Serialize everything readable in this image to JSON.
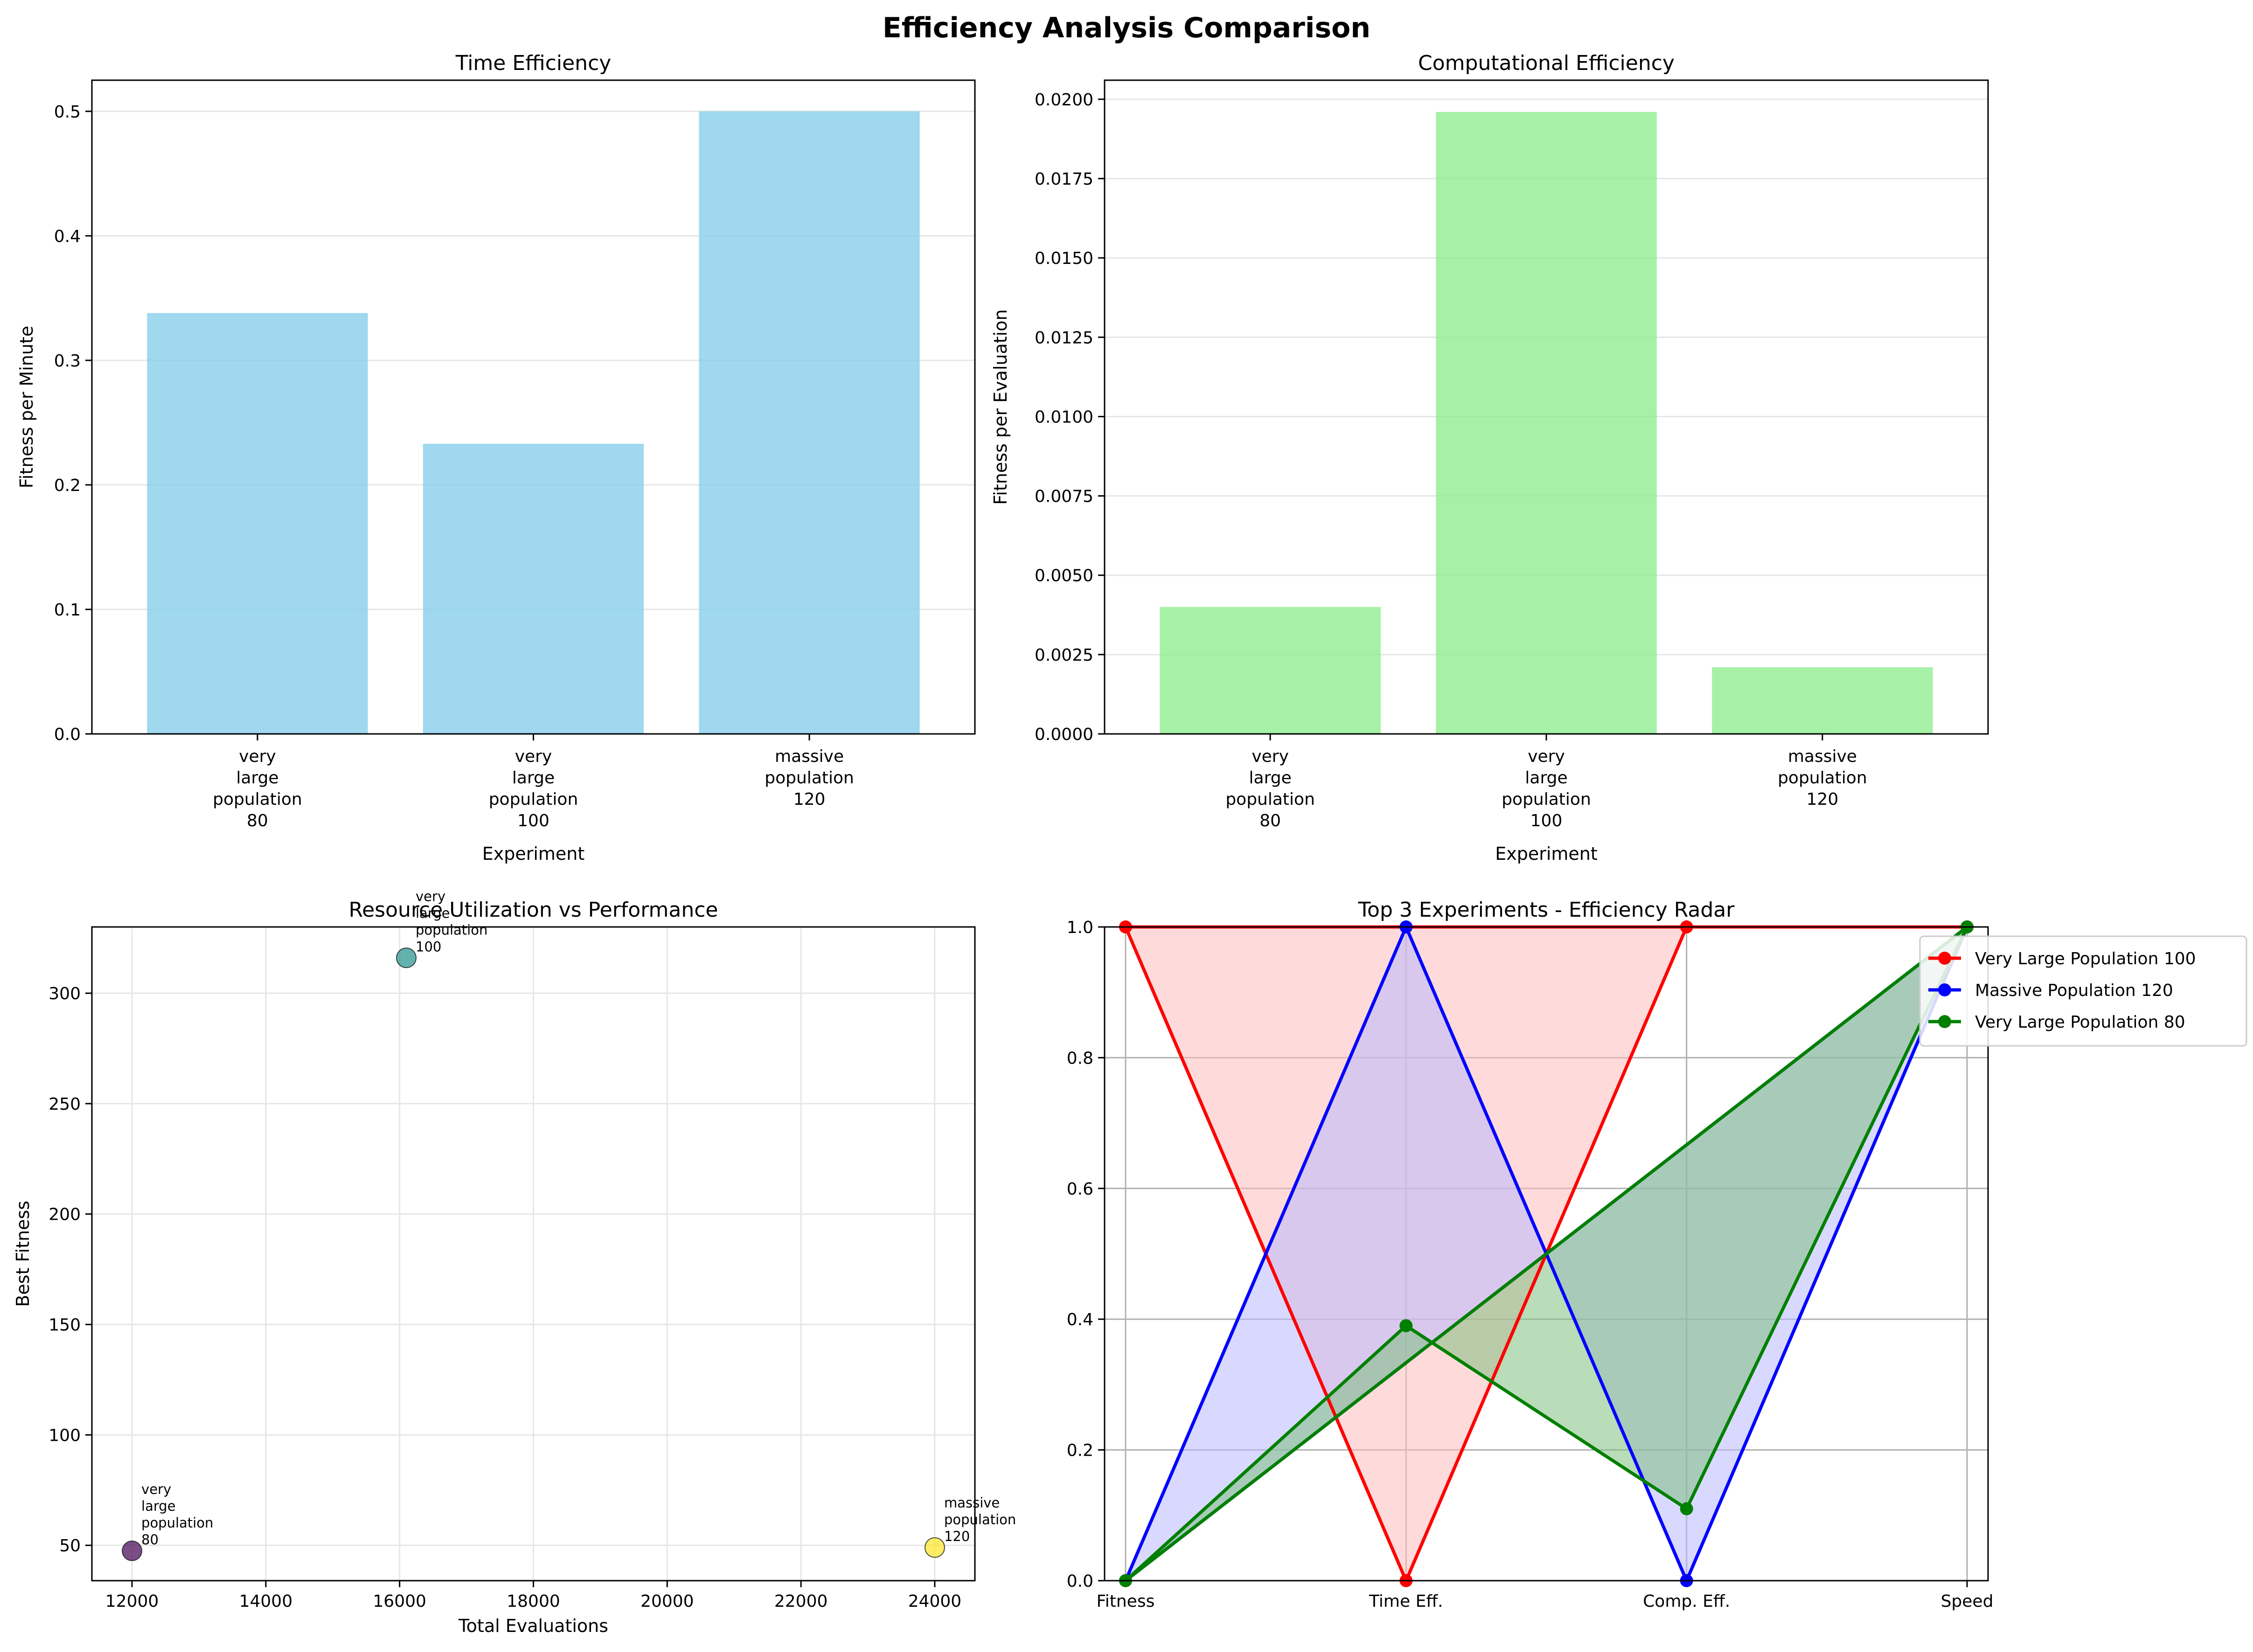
{
  "figure": {
    "title": "Efficiency Analysis Comparison"
  },
  "chart_data": [
    {
      "type": "bar",
      "title": "Time Efficiency",
      "xlabel": "Experiment",
      "ylabel": "Fitness per Minute",
      "categories": [
        "very\nlarge\npopulation\n80",
        "very\nlarge\npopulation\n100",
        "massive\npopulation\n120"
      ],
      "values": [
        0.338,
        0.233,
        0.5
      ],
      "ylim": [
        0,
        0.525
      ],
      "yticks": [
        "0.0",
        "0.1",
        "0.2",
        "0.3",
        "0.4",
        "0.5"
      ],
      "color": "#87ceeb",
      "grid": "y"
    },
    {
      "type": "bar",
      "title": "Computational Efficiency",
      "xlabel": "Experiment",
      "ylabel": "Fitness per Evaluation",
      "categories": [
        "very\nlarge\npopulation\n80",
        "very\nlarge\npopulation\n100",
        "massive\npopulation\n120"
      ],
      "values": [
        0.004,
        0.0196,
        0.0021
      ],
      "ylim": [
        0,
        0.0206
      ],
      "yticks": [
        "0.0000",
        "0.0025",
        "0.0050",
        "0.0075",
        "0.0100",
        "0.0125",
        "0.0150",
        "0.0175",
        "0.0200"
      ],
      "color": "#90ee90",
      "grid": "y"
    },
    {
      "type": "scatter",
      "title": "Resource Utilization vs Performance",
      "xlabel": "Total Evaluations",
      "ylabel": "Best Fitness",
      "points": [
        {
          "x": 12000,
          "y": 47.5,
          "label": "very\nlarge\npopulation\n80",
          "color": "#440154"
        },
        {
          "x": 16100,
          "y": 316,
          "label": "very\nlarge\npopulation\n100",
          "color": "#21918c"
        },
        {
          "x": 24000,
          "y": 49,
          "label": "massive\npopulation\n120",
          "color": "#fde725"
        }
      ],
      "xlim": [
        11400,
        24600
      ],
      "ylim": [
        34,
        330
      ],
      "xticks": [
        "12000",
        "14000",
        "16000",
        "18000",
        "20000",
        "22000",
        "24000"
      ],
      "yticks": [
        "50",
        "100",
        "150",
        "200",
        "250",
        "300"
      ],
      "grid": "both"
    },
    {
      "type": "line",
      "title": "Top 3 Experiments - Efficiency Radar",
      "categories": [
        "Fitness",
        "Time Eff.",
        "Comp. Eff.",
        "Speed"
      ],
      "ylim": [
        0,
        1
      ],
      "yticks": [
        "0.0",
        "0.2",
        "0.4",
        "0.6",
        "0.8",
        "1.0"
      ],
      "legend": "upper-right-outside",
      "grid": "both",
      "series": [
        {
          "name": "Very Large Population 100",
          "color": "#ff0000",
          "fill": "#ffbcbc",
          "values": [
            1.0,
            0.0,
            1.0,
            1.0
          ]
        },
        {
          "name": "Massive Population 120",
          "color": "#0000ff",
          "fill": "#b9b9ff",
          "values": [
            0.0,
            1.0,
            0.0,
            1.0
          ]
        },
        {
          "name": "Very Large Population 80",
          "color": "#008000",
          "fill": "#80c080",
          "values": [
            0.0,
            0.39,
            0.11,
            1.0
          ]
        }
      ]
    }
  ]
}
